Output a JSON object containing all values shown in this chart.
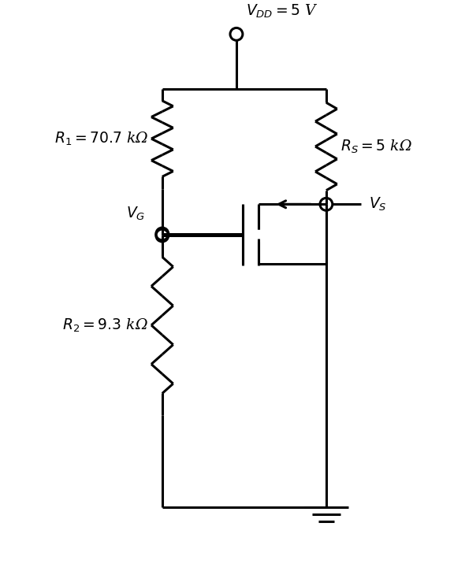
{
  "background_color": "#ffffff",
  "line_color": "#000000",
  "line_width": 2.2,
  "vdd_label": "$V_{DD} = 5$ V",
  "r1_label": "$R_1 = 70.7$ kΩ",
  "r2_label": "$R_2 = 9.3$ kΩ",
  "rs_label": "$R_S = 5$ kΩ",
  "vg_label": "$V_G$",
  "vs_label": "$V_S$",
  "font_size": 13.5,
  "fig_width": 5.9,
  "fig_height": 7.25,
  "dpi": 100
}
